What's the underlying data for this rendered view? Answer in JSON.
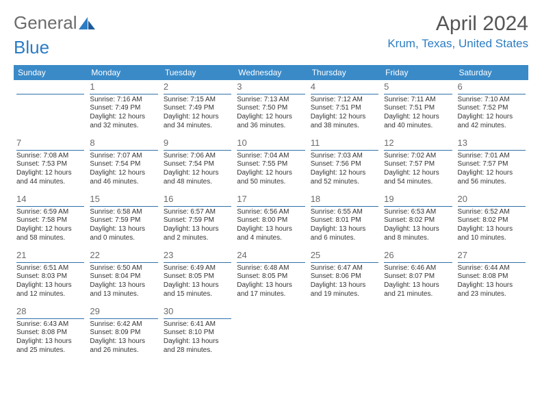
{
  "logo": {
    "text_gray": "General",
    "text_blue": "Blue"
  },
  "header": {
    "month_title": "April 2024",
    "location": "Krum, Texas, United States"
  },
  "day_headers": [
    "Sunday",
    "Monday",
    "Tuesday",
    "Wednesday",
    "Thursday",
    "Friday",
    "Saturday"
  ],
  "colors": {
    "header_bg": "#3a8ac8",
    "header_fg": "#ffffff",
    "accent": "#2b7cc4",
    "rule": "#2f6fa8",
    "text": "#333333",
    "logo_gray": "#6b6b6b"
  },
  "weeks": [
    [
      {
        "blank": true
      },
      {
        "n": "1",
        "sr": "Sunrise: 7:16 AM",
        "ss": "Sunset: 7:49 PM",
        "d1": "Daylight: 12 hours",
        "d2": "and 32 minutes."
      },
      {
        "n": "2",
        "sr": "Sunrise: 7:15 AM",
        "ss": "Sunset: 7:49 PM",
        "d1": "Daylight: 12 hours",
        "d2": "and 34 minutes."
      },
      {
        "n": "3",
        "sr": "Sunrise: 7:13 AM",
        "ss": "Sunset: 7:50 PM",
        "d1": "Daylight: 12 hours",
        "d2": "and 36 minutes."
      },
      {
        "n": "4",
        "sr": "Sunrise: 7:12 AM",
        "ss": "Sunset: 7:51 PM",
        "d1": "Daylight: 12 hours",
        "d2": "and 38 minutes."
      },
      {
        "n": "5",
        "sr": "Sunrise: 7:11 AM",
        "ss": "Sunset: 7:51 PM",
        "d1": "Daylight: 12 hours",
        "d2": "and 40 minutes."
      },
      {
        "n": "6",
        "sr": "Sunrise: 7:10 AM",
        "ss": "Sunset: 7:52 PM",
        "d1": "Daylight: 12 hours",
        "d2": "and 42 minutes."
      }
    ],
    [
      {
        "n": "7",
        "sr": "Sunrise: 7:08 AM",
        "ss": "Sunset: 7:53 PM",
        "d1": "Daylight: 12 hours",
        "d2": "and 44 minutes."
      },
      {
        "n": "8",
        "sr": "Sunrise: 7:07 AM",
        "ss": "Sunset: 7:54 PM",
        "d1": "Daylight: 12 hours",
        "d2": "and 46 minutes."
      },
      {
        "n": "9",
        "sr": "Sunrise: 7:06 AM",
        "ss": "Sunset: 7:54 PM",
        "d1": "Daylight: 12 hours",
        "d2": "and 48 minutes."
      },
      {
        "n": "10",
        "sr": "Sunrise: 7:04 AM",
        "ss": "Sunset: 7:55 PM",
        "d1": "Daylight: 12 hours",
        "d2": "and 50 minutes."
      },
      {
        "n": "11",
        "sr": "Sunrise: 7:03 AM",
        "ss": "Sunset: 7:56 PM",
        "d1": "Daylight: 12 hours",
        "d2": "and 52 minutes."
      },
      {
        "n": "12",
        "sr": "Sunrise: 7:02 AM",
        "ss": "Sunset: 7:57 PM",
        "d1": "Daylight: 12 hours",
        "d2": "and 54 minutes."
      },
      {
        "n": "13",
        "sr": "Sunrise: 7:01 AM",
        "ss": "Sunset: 7:57 PM",
        "d1": "Daylight: 12 hours",
        "d2": "and 56 minutes."
      }
    ],
    [
      {
        "n": "14",
        "sr": "Sunrise: 6:59 AM",
        "ss": "Sunset: 7:58 PM",
        "d1": "Daylight: 12 hours",
        "d2": "and 58 minutes."
      },
      {
        "n": "15",
        "sr": "Sunrise: 6:58 AM",
        "ss": "Sunset: 7:59 PM",
        "d1": "Daylight: 13 hours",
        "d2": "and 0 minutes."
      },
      {
        "n": "16",
        "sr": "Sunrise: 6:57 AM",
        "ss": "Sunset: 7:59 PM",
        "d1": "Daylight: 13 hours",
        "d2": "and 2 minutes."
      },
      {
        "n": "17",
        "sr": "Sunrise: 6:56 AM",
        "ss": "Sunset: 8:00 PM",
        "d1": "Daylight: 13 hours",
        "d2": "and 4 minutes."
      },
      {
        "n": "18",
        "sr": "Sunrise: 6:55 AM",
        "ss": "Sunset: 8:01 PM",
        "d1": "Daylight: 13 hours",
        "d2": "and 6 minutes."
      },
      {
        "n": "19",
        "sr": "Sunrise: 6:53 AM",
        "ss": "Sunset: 8:02 PM",
        "d1": "Daylight: 13 hours",
        "d2": "and 8 minutes."
      },
      {
        "n": "20",
        "sr": "Sunrise: 6:52 AM",
        "ss": "Sunset: 8:02 PM",
        "d1": "Daylight: 13 hours",
        "d2": "and 10 minutes."
      }
    ],
    [
      {
        "n": "21",
        "sr": "Sunrise: 6:51 AM",
        "ss": "Sunset: 8:03 PM",
        "d1": "Daylight: 13 hours",
        "d2": "and 12 minutes."
      },
      {
        "n": "22",
        "sr": "Sunrise: 6:50 AM",
        "ss": "Sunset: 8:04 PM",
        "d1": "Daylight: 13 hours",
        "d2": "and 13 minutes."
      },
      {
        "n": "23",
        "sr": "Sunrise: 6:49 AM",
        "ss": "Sunset: 8:05 PM",
        "d1": "Daylight: 13 hours",
        "d2": "and 15 minutes."
      },
      {
        "n": "24",
        "sr": "Sunrise: 6:48 AM",
        "ss": "Sunset: 8:05 PM",
        "d1": "Daylight: 13 hours",
        "d2": "and 17 minutes."
      },
      {
        "n": "25",
        "sr": "Sunrise: 6:47 AM",
        "ss": "Sunset: 8:06 PM",
        "d1": "Daylight: 13 hours",
        "d2": "and 19 minutes."
      },
      {
        "n": "26",
        "sr": "Sunrise: 6:46 AM",
        "ss": "Sunset: 8:07 PM",
        "d1": "Daylight: 13 hours",
        "d2": "and 21 minutes."
      },
      {
        "n": "27",
        "sr": "Sunrise: 6:44 AM",
        "ss": "Sunset: 8:08 PM",
        "d1": "Daylight: 13 hours",
        "d2": "and 23 minutes."
      }
    ],
    [
      {
        "n": "28",
        "sr": "Sunrise: 6:43 AM",
        "ss": "Sunset: 8:08 PM",
        "d1": "Daylight: 13 hours",
        "d2": "and 25 minutes."
      },
      {
        "n": "29",
        "sr": "Sunrise: 6:42 AM",
        "ss": "Sunset: 8:09 PM",
        "d1": "Daylight: 13 hours",
        "d2": "and 26 minutes."
      },
      {
        "n": "30",
        "sr": "Sunrise: 6:41 AM",
        "ss": "Sunset: 8:10 PM",
        "d1": "Daylight: 13 hours",
        "d2": "and 28 minutes."
      },
      {
        "blank": true
      },
      {
        "blank": true
      },
      {
        "blank": true
      },
      {
        "blank": true
      }
    ]
  ]
}
